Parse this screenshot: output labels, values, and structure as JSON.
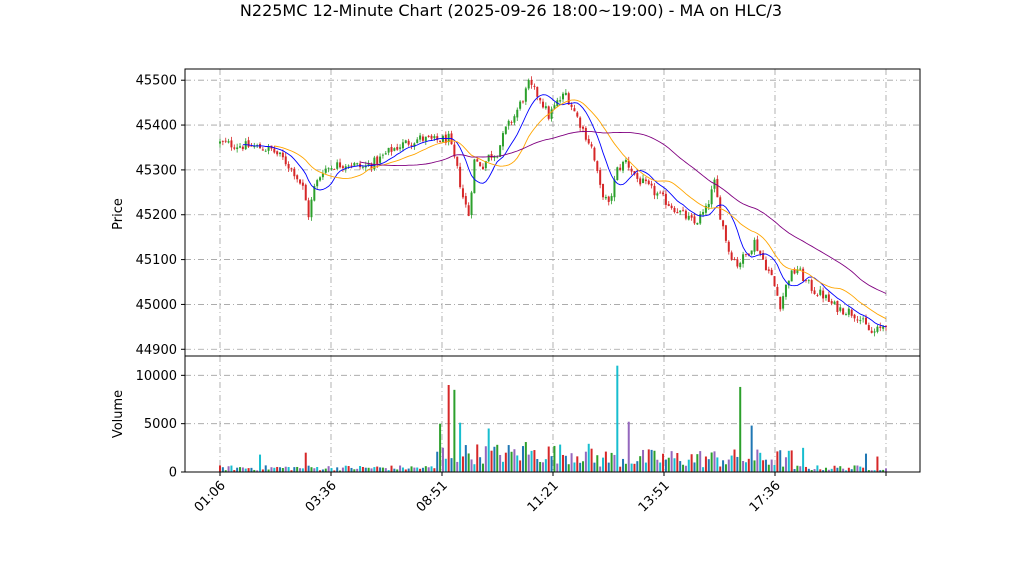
{
  "chart_data": {
    "type": "candlestick",
    "title": "N225MC 12-Minute Chart (2025-09-26 18:00~19:00) - MA on HLC/3",
    "grid": true,
    "x_ticks": [
      "01:06",
      "03:36",
      "08:51",
      "11:21",
      "13:51",
      "17:36"
    ],
    "price_panel": {
      "ylabel": "Price",
      "ylim": [
        44885,
        45525
      ],
      "yticks": [
        44900,
        45000,
        45100,
        45200,
        45300,
        45400,
        45500
      ],
      "close_path": [
        [
          0,
          45360
        ],
        [
          6,
          45355
        ],
        [
          12,
          45352
        ],
        [
          18,
          45345
        ],
        [
          22,
          45325
        ],
        [
          26,
          45295
        ],
        [
          29,
          45260
        ],
        [
          31,
          45200
        ],
        [
          33,
          45260
        ],
        [
          36,
          45300
        ],
        [
          40,
          45310
        ],
        [
          45,
          45315
        ],
        [
          50,
          45305
        ],
        [
          55,
          45320
        ],
        [
          60,
          45345
        ],
        [
          65,
          45360
        ],
        [
          70,
          45370
        ],
        [
          75,
          45365
        ],
        [
          80,
          45370
        ],
        [
          83,
          45300
        ],
        [
          85,
          45240
        ],
        [
          87,
          45200
        ],
        [
          89,
          45320
        ],
        [
          92,
          45310
        ],
        [
          94,
          45330
        ],
        [
          97,
          45340
        ],
        [
          100,
          45390
        ],
        [
          103,
          45420
        ],
        [
          106,
          45460
        ],
        [
          108,
          45490
        ],
        [
          112,
          45460
        ],
        [
          115,
          45420
        ],
        [
          118,
          45450
        ],
        [
          121,
          45470
        ],
        [
          124,
          45430
        ],
        [
          127,
          45390
        ],
        [
          130,
          45350
        ],
        [
          133,
          45260
        ],
        [
          136,
          45220
        ],
        [
          139,
          45300
        ],
        [
          142,
          45320
        ],
        [
          146,
          45280
        ],
        [
          150,
          45260
        ],
        [
          154,
          45240
        ],
        [
          158,
          45220
        ],
        [
          162,
          45200
        ],
        [
          166,
          45180
        ],
        [
          170,
          45210
        ],
        [
          173,
          45270
        ],
        [
          175,
          45200
        ],
        [
          178,
          45120
        ],
        [
          181,
          45090
        ],
        [
          184,
          45110
        ],
        [
          187,
          45140
        ],
        [
          190,
          45100
        ],
        [
          193,
          45060
        ],
        [
          196,
          45000
        ],
        [
          199,
          45060
        ],
        [
          202,
          45080
        ],
        [
          205,
          45050
        ],
        [
          208,
          45030
        ],
        [
          211,
          45020
        ],
        [
          214,
          45000
        ],
        [
          217,
          44990
        ],
        [
          220,
          44985
        ],
        [
          223,
          44975
        ],
        [
          226,
          44950
        ],
        [
          228,
          44935
        ],
        [
          231,
          44945
        ],
        [
          233,
          44960
        ]
      ]
    },
    "volume_panel": {
      "ylabel": "Volume",
      "ylim": [
        0,
        12000
      ],
      "yticks": [
        0,
        5000,
        10000
      ],
      "spikes": [
        [
          14,
          1800
        ],
        [
          30,
          2000
        ],
        [
          77,
          5000
        ],
        [
          80,
          9000
        ],
        [
          82,
          8500
        ],
        [
          84,
          5100
        ],
        [
          94,
          4500
        ],
        [
          107,
          3100
        ],
        [
          139,
          11000
        ],
        [
          143,
          5200
        ],
        [
          182,
          8800
        ],
        [
          186,
          4800
        ],
        [
          204,
          2500
        ],
        [
          226,
          1900
        ],
        [
          230,
          1600
        ]
      ]
    },
    "n_candles": 234,
    "series": [
      {
        "name": "",
        "color": "#0000ff",
        "period": 9
      },
      {
        "name": "",
        "color": "#ffa500",
        "period": 20
      },
      {
        "name": "",
        "color": "#800080",
        "period": 50
      }
    ],
    "candle_colors": {
      "up": "#2ca02c",
      "down": "#d62728"
    },
    "volume_colors": [
      "#d62728",
      "#1f77b4",
      "#2ca02c",
      "#9467bd",
      "#17becf"
    ]
  }
}
